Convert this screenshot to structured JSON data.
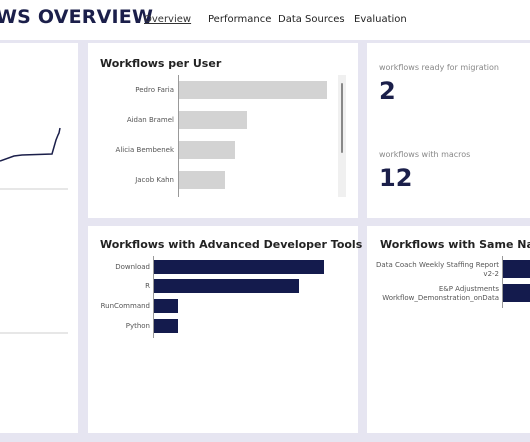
{
  "header": {
    "title": "WS OVERVIEW",
    "tabs": [
      {
        "label": "Overview",
        "active": true
      },
      {
        "label": "Performance",
        "active": false
      },
      {
        "label": "Data Sources",
        "active": false
      },
      {
        "label": "Evaluation",
        "active": false
      }
    ]
  },
  "workflows_per_user": {
    "title": "Workflows per User",
    "bar_color": "#d3d3d3",
    "users": [
      {
        "name": "Pedro Faria",
        "value": 100
      },
      {
        "name": "Aidan Bramel",
        "value": 46
      },
      {
        "name": "Alicia Bembenek",
        "value": 38
      },
      {
        "name": "Jacob Kahn",
        "value": 31
      }
    ]
  },
  "kpis": [
    {
      "label": "workflows ready for migration",
      "value": "2"
    },
    {
      "label": "workflows with macros",
      "value": "12"
    }
  ],
  "advanced_tools": {
    "title": "Workflows with Advanced Developer Tools",
    "bar_color": "#141b4d",
    "tools": [
      {
        "name": "Download",
        "value": 100
      },
      {
        "name": "R",
        "value": 85
      },
      {
        "name": "RunCommand",
        "value": 14
      },
      {
        "name": "Python",
        "value": 14
      }
    ]
  },
  "same_name": {
    "title": "Workflows with Same Name",
    "bar_color": "#141b4d",
    "items": [
      {
        "line1": "Data Coach Weekly Staffing Report",
        "line2": "v2-2"
      },
      {
        "line1": "E&P Adjustments",
        "line2": "Workflow_Demonstration_onData"
      }
    ]
  }
}
